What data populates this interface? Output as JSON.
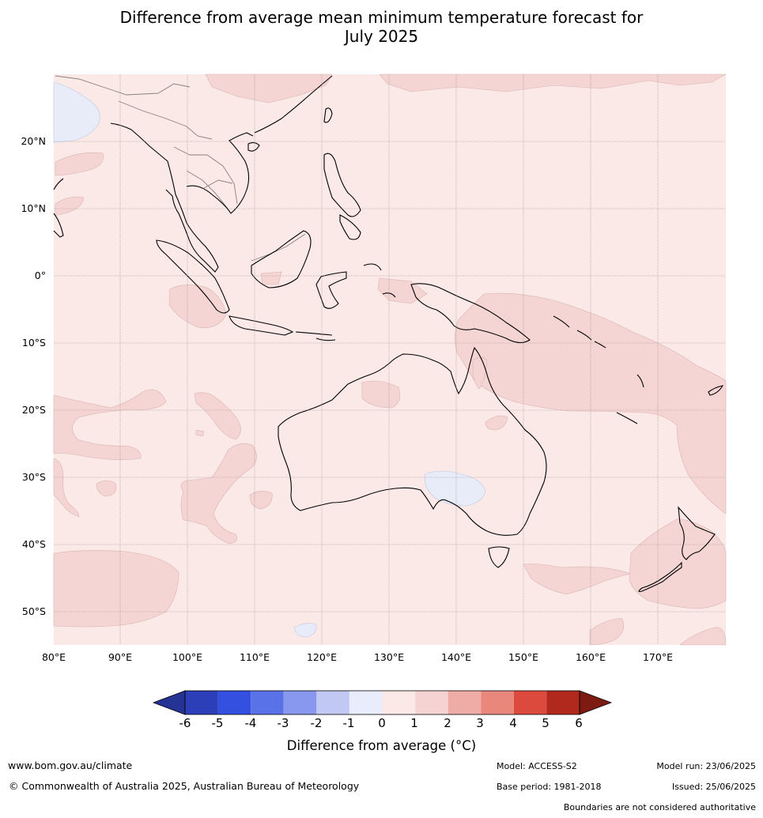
{
  "title": {
    "line1": "Difference from average mean minimum temperature forecast for",
    "line2": "July 2025"
  },
  "map": {
    "lat_labels": [
      "20°N",
      "10°N",
      "0°",
      "10°S",
      "20°S",
      "30°S",
      "40°S",
      "50°S"
    ],
    "lon_labels": [
      "80°E",
      "90°E",
      "100°E",
      "110°E",
      "120°E",
      "130°E",
      "140°E",
      "150°E",
      "160°E",
      "170°E"
    ],
    "extent": {
      "lon": [
        80,
        180
      ],
      "lat": [
        -55,
        30
      ]
    },
    "colors": {
      "background_0_to_1": "#fbe9e8",
      "class_1_to_2": "#f4d5d4",
      "class_minus1_to_0": "#e8ecf8",
      "coastline": "#000000",
      "border": "#8a8080",
      "grid": "#9a9090"
    }
  },
  "colorbar": {
    "ticks": [
      "-6",
      "-5",
      "-4",
      "-3",
      "-2",
      "-1",
      "0",
      "1",
      "2",
      "3",
      "4",
      "5",
      "6"
    ],
    "colors": [
      "#253494",
      "#2c3fb8",
      "#3350e0",
      "#5a72e8",
      "#8898ef",
      "#c2c8f4",
      "#e9ecfb",
      "#fbe9e8",
      "#f5d3d2",
      "#efaca7",
      "#e9877d",
      "#dc4a3e",
      "#b1281c",
      "#7d1a12"
    ],
    "label": "Difference from average (°C)"
  },
  "footer": {
    "website": "www.bom.gov.au/climate",
    "copyright": "© Commonwealth of Australia 2025, Australian Bureau of Meteorology",
    "model": "Model: ACCESS-S2",
    "base_period": "Base period: 1981-2018",
    "model_run": "Model run: 23/06/2025",
    "issued": "Issued: 25/06/2025",
    "disclaimer": "Boundaries are not considered authoritative"
  }
}
